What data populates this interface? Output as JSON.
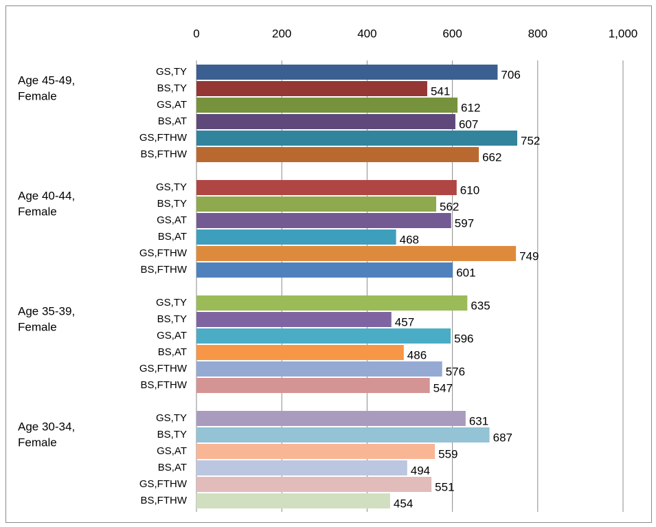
{
  "chart_data": {
    "type": "bar",
    "orientation": "horizontal",
    "xlim": [
      0,
      1000
    ],
    "xticks": [
      0,
      200,
      400,
      600,
      800,
      {
        "value": 1000,
        "label": "1,000"
      }
    ],
    "grid": true,
    "groups": [
      {
        "label_lines": [
          "Age 45-49,",
          "Female"
        ],
        "categories": [
          "GS,TY",
          "BS,TY",
          "GS,AT",
          "BS,AT",
          "GS,FTHW",
          "BS,FTHW"
        ],
        "values": [
          706,
          541,
          612,
          607,
          752,
          662
        ],
        "colors": [
          "#3c5f91",
          "#943735",
          "#76923c",
          "#5f497a",
          "#31849b",
          "#b9692f"
        ]
      },
      {
        "label_lines": [
          "Age 40-44,",
          "Female"
        ],
        "categories": [
          "GS,TY",
          "BS,TY",
          "GS,AT",
          "BS,AT",
          "GS,FTHW",
          "BS,FTHW"
        ],
        "values": [
          610,
          562,
          597,
          468,
          749,
          601
        ],
        "colors": [
          "#b04643",
          "#8fa94f",
          "#735a93",
          "#3e9fbd",
          "#de8a3d",
          "#4f81bd"
        ]
      },
      {
        "label_lines": [
          "Age 35-39,",
          "Female"
        ],
        "categories": [
          "GS,TY",
          "BS,TY",
          "GS,AT",
          "BS,AT",
          "GS,FTHW",
          "BS,FTHW"
        ],
        "values": [
          635,
          457,
          596,
          486,
          576,
          547
        ],
        "colors": [
          "#9bbb59",
          "#8064a2",
          "#4bacc6",
          "#f79646",
          "#95aad3",
          "#d49493"
        ]
      },
      {
        "label_lines": [
          "Age 30-34,",
          "Female"
        ],
        "categories": [
          "GS,TY",
          "BS,TY",
          "GS,AT",
          "BS,AT",
          "GS,FTHW",
          "BS,FTHW"
        ],
        "values": [
          631,
          687,
          559,
          494,
          551,
          454
        ],
        "colors": [
          "#a99bbd",
          "#93c3d5",
          "#f9b695",
          "#bbc6e0",
          "#e2bbbb",
          "#d1dfc0"
        ]
      }
    ]
  }
}
